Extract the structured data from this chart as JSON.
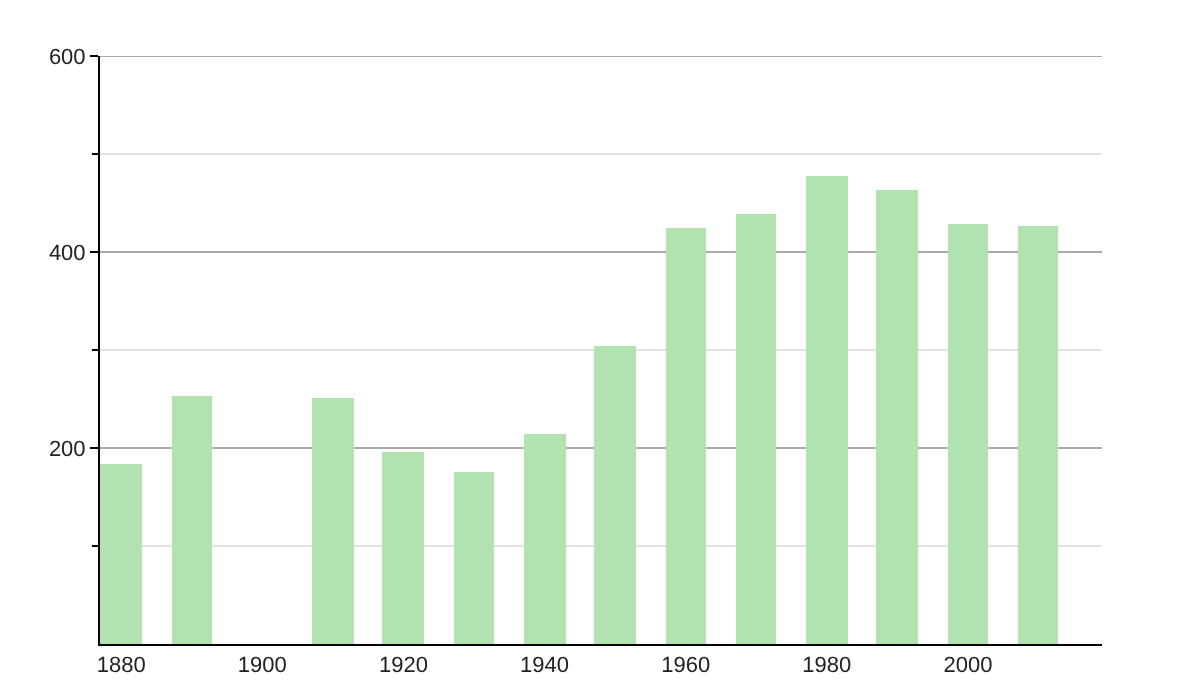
{
  "chart_data": {
    "type": "bar",
    "x": [
      1880,
      1890,
      1910,
      1920,
      1930,
      1940,
      1950,
      1960,
      1970,
      1980,
      1990,
      2000,
      2010
    ],
    "values": [
      184,
      253,
      251,
      195,
      176,
      215,
      305,
      424,
      439,
      478,
      464,
      428,
      426
    ],
    "color": "#b1e3b1",
    "xlim": [
      1877,
      2019
    ],
    "xticks": [
      1880,
      1900,
      1920,
      1940,
      1960,
      1980,
      2000
    ],
    "ylim": [
      0,
      600
    ],
    "yticks": [
      {
        "value": 100,
        "label": null
      },
      200,
      {
        "value": 300,
        "label": null
      },
      400,
      {
        "value": 500,
        "label": null
      },
      600
    ],
    "grid": "y"
  }
}
